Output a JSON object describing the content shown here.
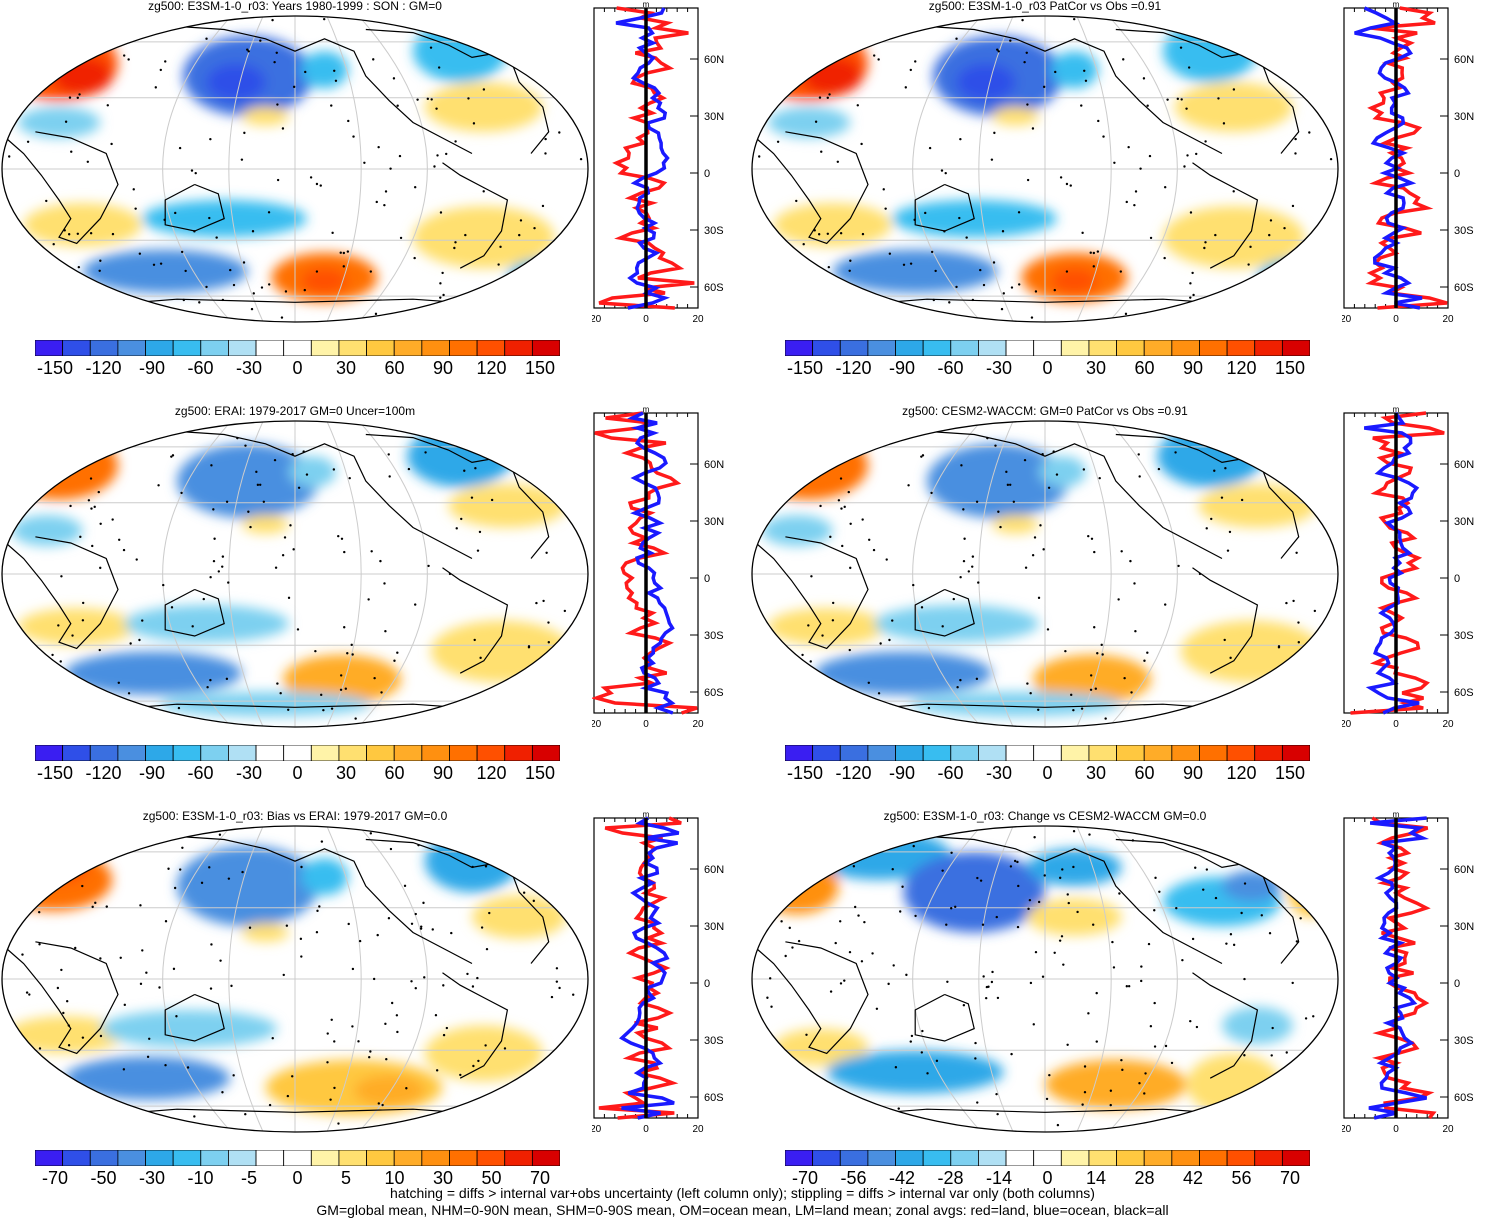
{
  "panels": [
    {
      "title": "zg500: E3SM-1-0_r03: Years 1980-1999 : SON : GM=0",
      "cbar": "a",
      "pattern": 0
    },
    {
      "title": "zg500: E3SM-1-0_r03 PatCor vs Obs =0.91",
      "cbar": "a",
      "pattern": 0
    },
    {
      "title": "zg500: ERAI: 1979-2017 GM=0 Uncer=100m",
      "cbar": "a",
      "pattern": 1
    },
    {
      "title": "zg500: CESM2-WACCM: GM=0 PatCor vs Obs =0.91",
      "cbar": "a",
      "pattern": 1
    },
    {
      "title": "zg500: E3SM-1-0_r03: Bias vs ERAI: 1979-2017  GM=0.0",
      "cbar": "b",
      "pattern": 2
    },
    {
      "title": "zg500: E3SM-1-0_r03: Change vs CESM2-WACCM GM=0.0",
      "cbar": "c",
      "pattern": 3
    }
  ],
  "colorbars": {
    "a": [
      "-150",
      "-120",
      "-90",
      "-60",
      "-30",
      "0",
      "30",
      "60",
      "90",
      "120",
      "150"
    ],
    "b": [
      "-70",
      "-50",
      "-30",
      "-10",
      "-5",
      "0",
      "5",
      "10",
      "30",
      "50",
      "70"
    ],
    "c": [
      "-70",
      "-56",
      "-42",
      "-28",
      "-14",
      "0",
      "14",
      "28",
      "42",
      "56",
      "70"
    ]
  },
  "colors": [
    "#3a1ef2",
    "#2f4fe8",
    "#3a6fe0",
    "#4a8fe0",
    "#2da8e8",
    "#38bdf0",
    "#7dd0f0",
    "#b0e0f4",
    "#ffffff",
    "#ffffff",
    "#fff3a8",
    "#ffe070",
    "#ffc840",
    "#ffac28",
    "#ff9010",
    "#ff7000",
    "#ff5000",
    "#f02000",
    "#d80000"
  ],
  "zonal": {
    "unit": "m",
    "x_ticks": [
      "-20",
      "0",
      "20"
    ],
    "lat_ticks": [
      "60N",
      "30N",
      "0",
      "30S",
      "60S"
    ],
    "legend_colors": {
      "land": "#ff1a1a",
      "ocean": "#1a1aff",
      "all": "#000000"
    }
  },
  "footer": {
    "line1": "hatching = diffs > internal var+obs uncertainty (left column only); stippling = diffs > internal var only (both columns)",
    "line2": "GM=global mean, NHM=0-90N mean, SHM=0-90S mean, OM=ocean mean, LM=land mean; zonal avgs: red=land, blue=ocean, black=all"
  }
}
